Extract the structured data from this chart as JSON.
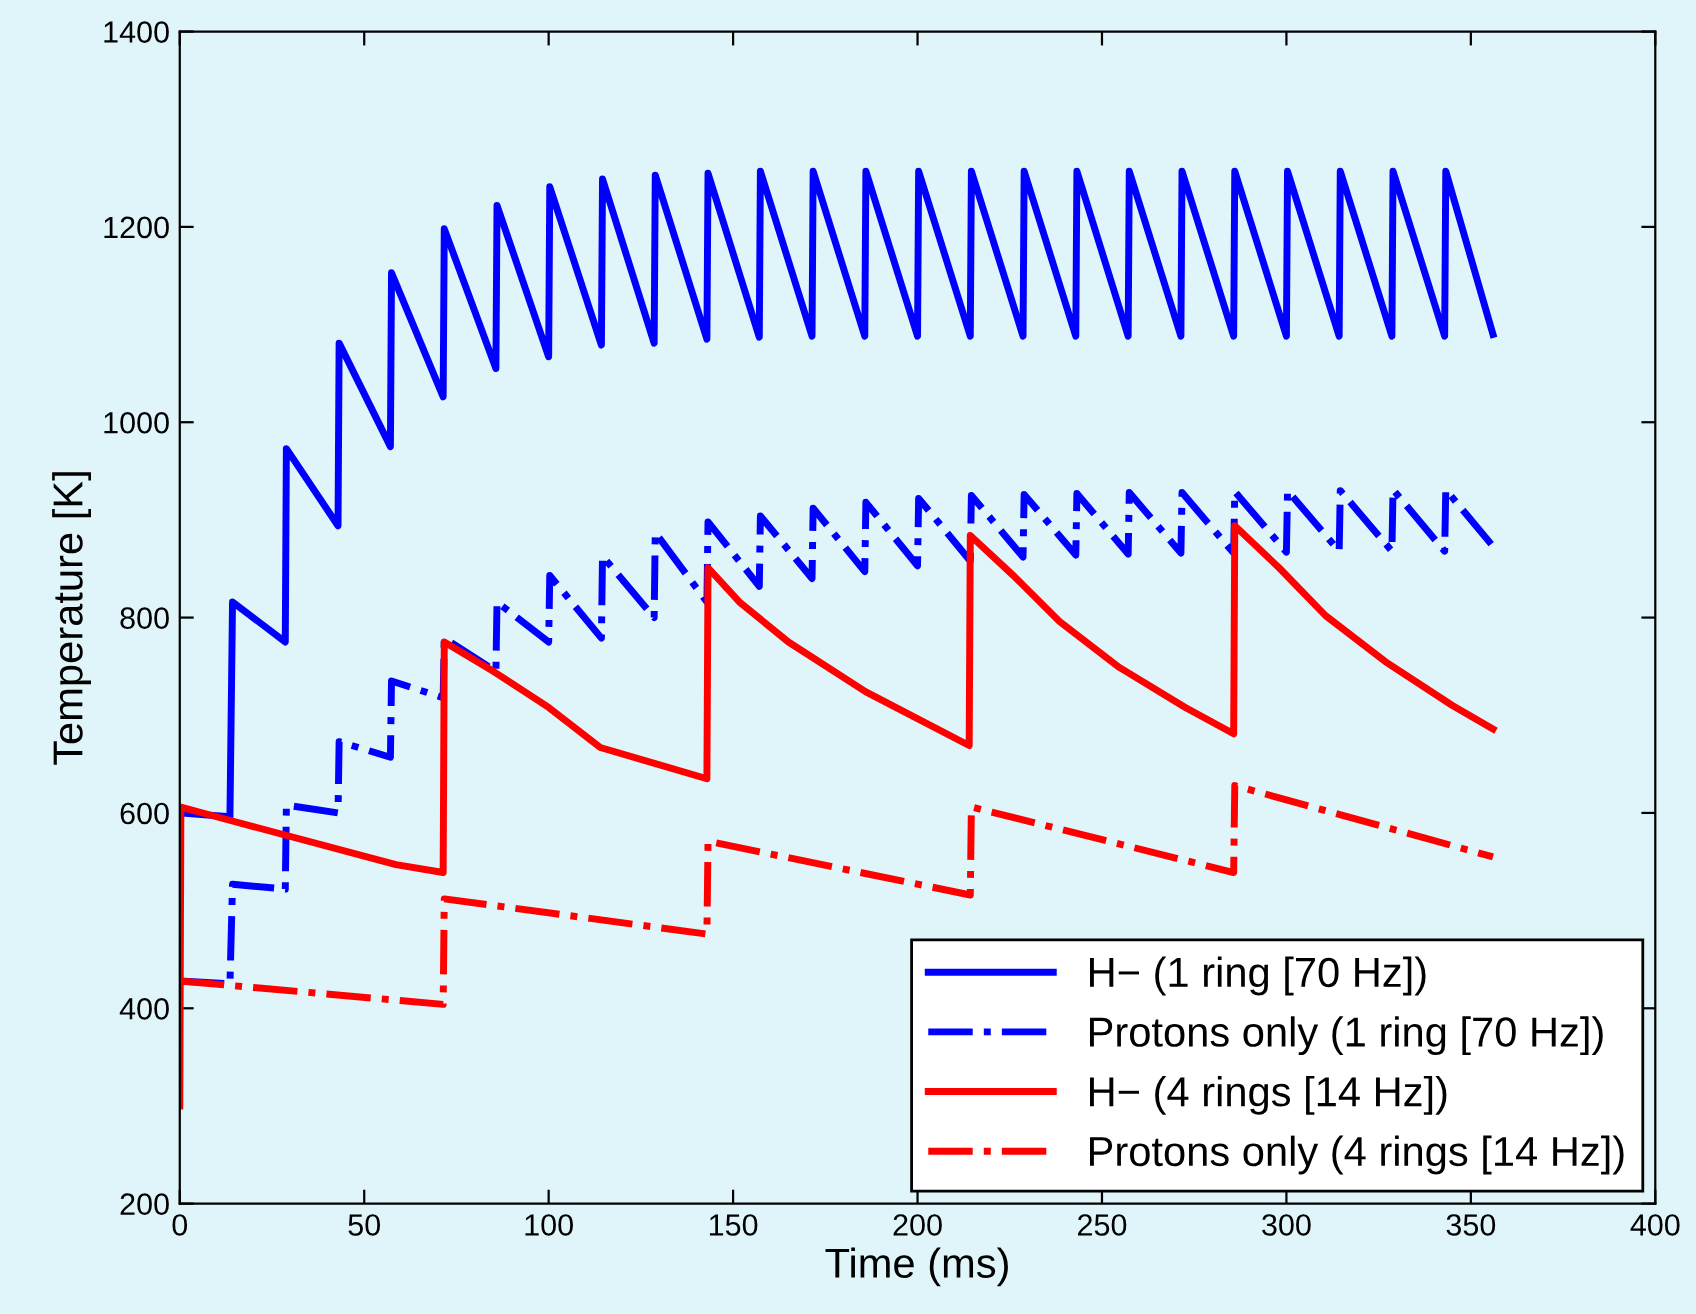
{
  "chart_data": {
    "type": "line",
    "xlabel": "Time (ms)",
    "ylabel": "Temperature [K]",
    "xlim": [
      0,
      400
    ],
    "xticks": [
      0,
      50,
      100,
      150,
      200,
      250,
      300,
      350,
      400
    ],
    "ylim": [
      200,
      1400
    ],
    "yticks": [
      200,
      400,
      600,
      800,
      1000,
      1200,
      1400
    ],
    "grid": false,
    "legend": "bottom right",
    "series": [
      {
        "name": "H− (1 ring [70 Hz])",
        "color": "#0000ff",
        "line_style": "solid",
        "x": [
          0,
          13.6,
          14.3,
          28.6,
          28.9,
          42.9,
          43.2,
          57.1,
          57.4,
          71.4,
          71.7,
          85.7,
          86,
          100,
          100.3,
          114.3,
          114.6,
          128.6,
          128.9,
          142.9,
          143.2,
          157.1,
          157.4,
          171.4,
          171.7,
          185.7,
          186,
          200,
          200.3,
          214.3,
          214.6,
          228.6,
          228.9,
          242.9,
          243.2,
          257.1,
          257.4,
          271.4,
          271.7,
          285.7,
          286,
          300,
          300.3,
          314.3,
          314.6,
          328.6,
          328.9,
          342.9,
          343.2,
          356
        ],
        "values": [
          600,
          596,
          816,
          775,
          973,
          894,
          1081,
          975,
          1153,
          1026,
          1198,
          1055,
          1222,
          1067,
          1241,
          1079,
          1249,
          1081,
          1253,
          1085,
          1255,
          1087,
          1257,
          1088,
          1257,
          1088,
          1257,
          1088,
          1257,
          1088,
          1257,
          1088,
          1257,
          1088,
          1257,
          1088,
          1257,
          1088,
          1257,
          1088,
          1257,
          1088,
          1257,
          1088,
          1257,
          1088,
          1257,
          1088,
          1257,
          1090
        ]
      },
      {
        "name": "Protons only (1 ring [70 Hz])",
        "color": "#0000ff",
        "line_style": "dashdot",
        "x": [
          0,
          13.6,
          14.3,
          28.6,
          28.9,
          42.9,
          43.2,
          57.1,
          57.4,
          71.4,
          71.7,
          85.7,
          86,
          100,
          100.3,
          114.3,
          114.6,
          128.6,
          128.9,
          142.9,
          143.2,
          157.1,
          157.4,
          171.4,
          171.7,
          185.7,
          186,
          200,
          200.3,
          214.3,
          214.6,
          228.6,
          228.9,
          242.9,
          243.2,
          257.1,
          257.4,
          271.4,
          271.7,
          285.7,
          286,
          300,
          300.3,
          314.3,
          314.6,
          328.6,
          328.9,
          342.9,
          343.2,
          356
        ],
        "values": [
          428,
          425,
          527,
          522,
          608,
          600,
          673,
          657,
          735,
          718,
          779,
          745,
          816,
          775,
          843,
          779,
          863,
          800,
          887,
          816,
          898,
          832,
          904,
          840,
          912,
          847,
          918,
          853,
          922,
          858,
          925,
          862,
          926,
          864,
          927,
          865,
          928,
          866,
          928,
          866,
          929,
          867,
          930,
          868,
          930,
          868,
          931,
          868,
          931,
          873
        ]
      },
      {
        "name": "H− (4 rings [14 Hz])",
        "color": "#ff0000",
        "line_style": "solid",
        "x": [
          0,
          0.3,
          14,
          58.6,
          71.4,
          71.7,
          85,
          100,
          114,
          142.9,
          143.2,
          151.7,
          165,
          186,
          214,
          214.3,
          226,
          238.5,
          254.7,
          272.6,
          285.7,
          286,
          298,
          310.6,
          326.8,
          345,
          356
        ],
        "values": [
          300,
          606,
          592,
          547,
          539,
          775,
          745,
          708,
          667,
          635,
          851,
          816,
          775,
          724,
          669,
          884,
          843,
          796,
          749,
          708,
          681,
          894,
          851,
          802,
          755,
          710,
          686
        ]
      },
      {
        "name": "Protons only (4 rings [14 Hz])",
        "color": "#ff0000",
        "line_style": "dashdot",
        "x": [
          0,
          71.4,
          71.7,
          142.9,
          143.2,
          214.3,
          214.6,
          285.7,
          286,
          356
        ],
        "values": [
          428,
          404,
          512,
          476,
          571,
          516,
          606,
          539,
          628,
          555
        ]
      }
    ]
  }
}
